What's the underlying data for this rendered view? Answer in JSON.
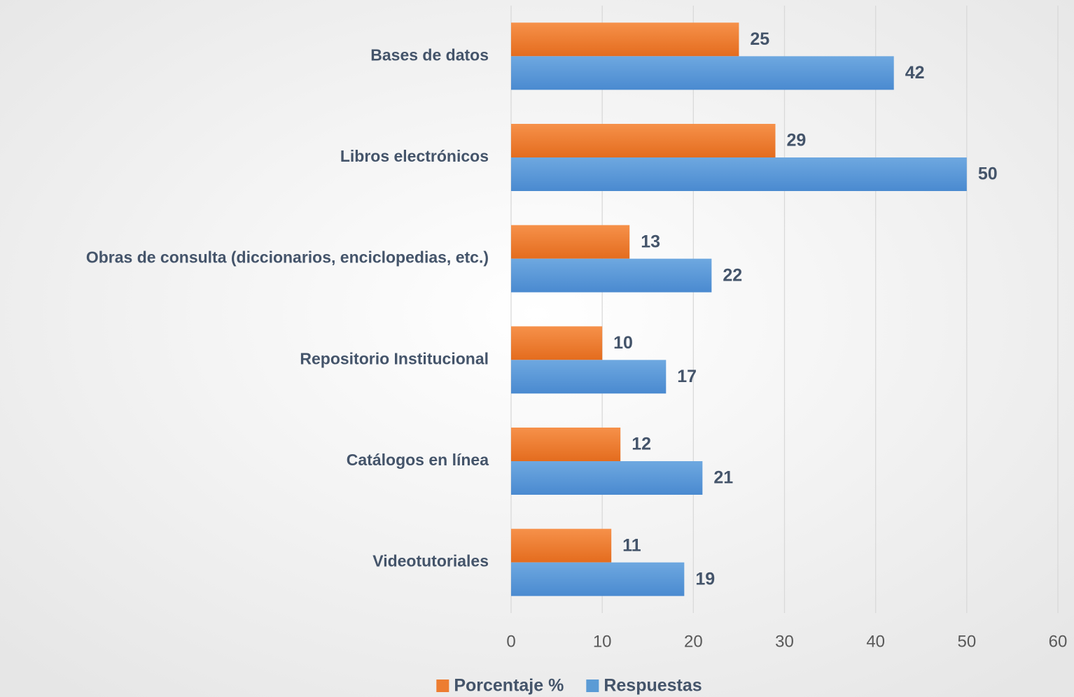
{
  "chart_data": {
    "type": "bar",
    "orientation": "horizontal",
    "categories": [
      "Bases de datos",
      "Libros electrónicos",
      "Obras de consulta (diccionarios, enciclopedias, etc.)",
      "Repositorio Institucional",
      "Catálogos en línea",
      "Videotutoriales"
    ],
    "series": [
      {
        "name": "Porcentaje %",
        "color": "#ed7d31",
        "values": [
          25,
          29,
          13,
          10,
          12,
          11
        ]
      },
      {
        "name": "Respuestas",
        "color": "#5b9bd5",
        "values": [
          42,
          50,
          22,
          17,
          21,
          19
        ]
      }
    ],
    "xlim": [
      0,
      60
    ],
    "xticks": [
      0,
      10,
      20,
      30,
      40,
      50,
      60
    ],
    "grid": true,
    "legend": "bottom",
    "data_labels": true
  }
}
